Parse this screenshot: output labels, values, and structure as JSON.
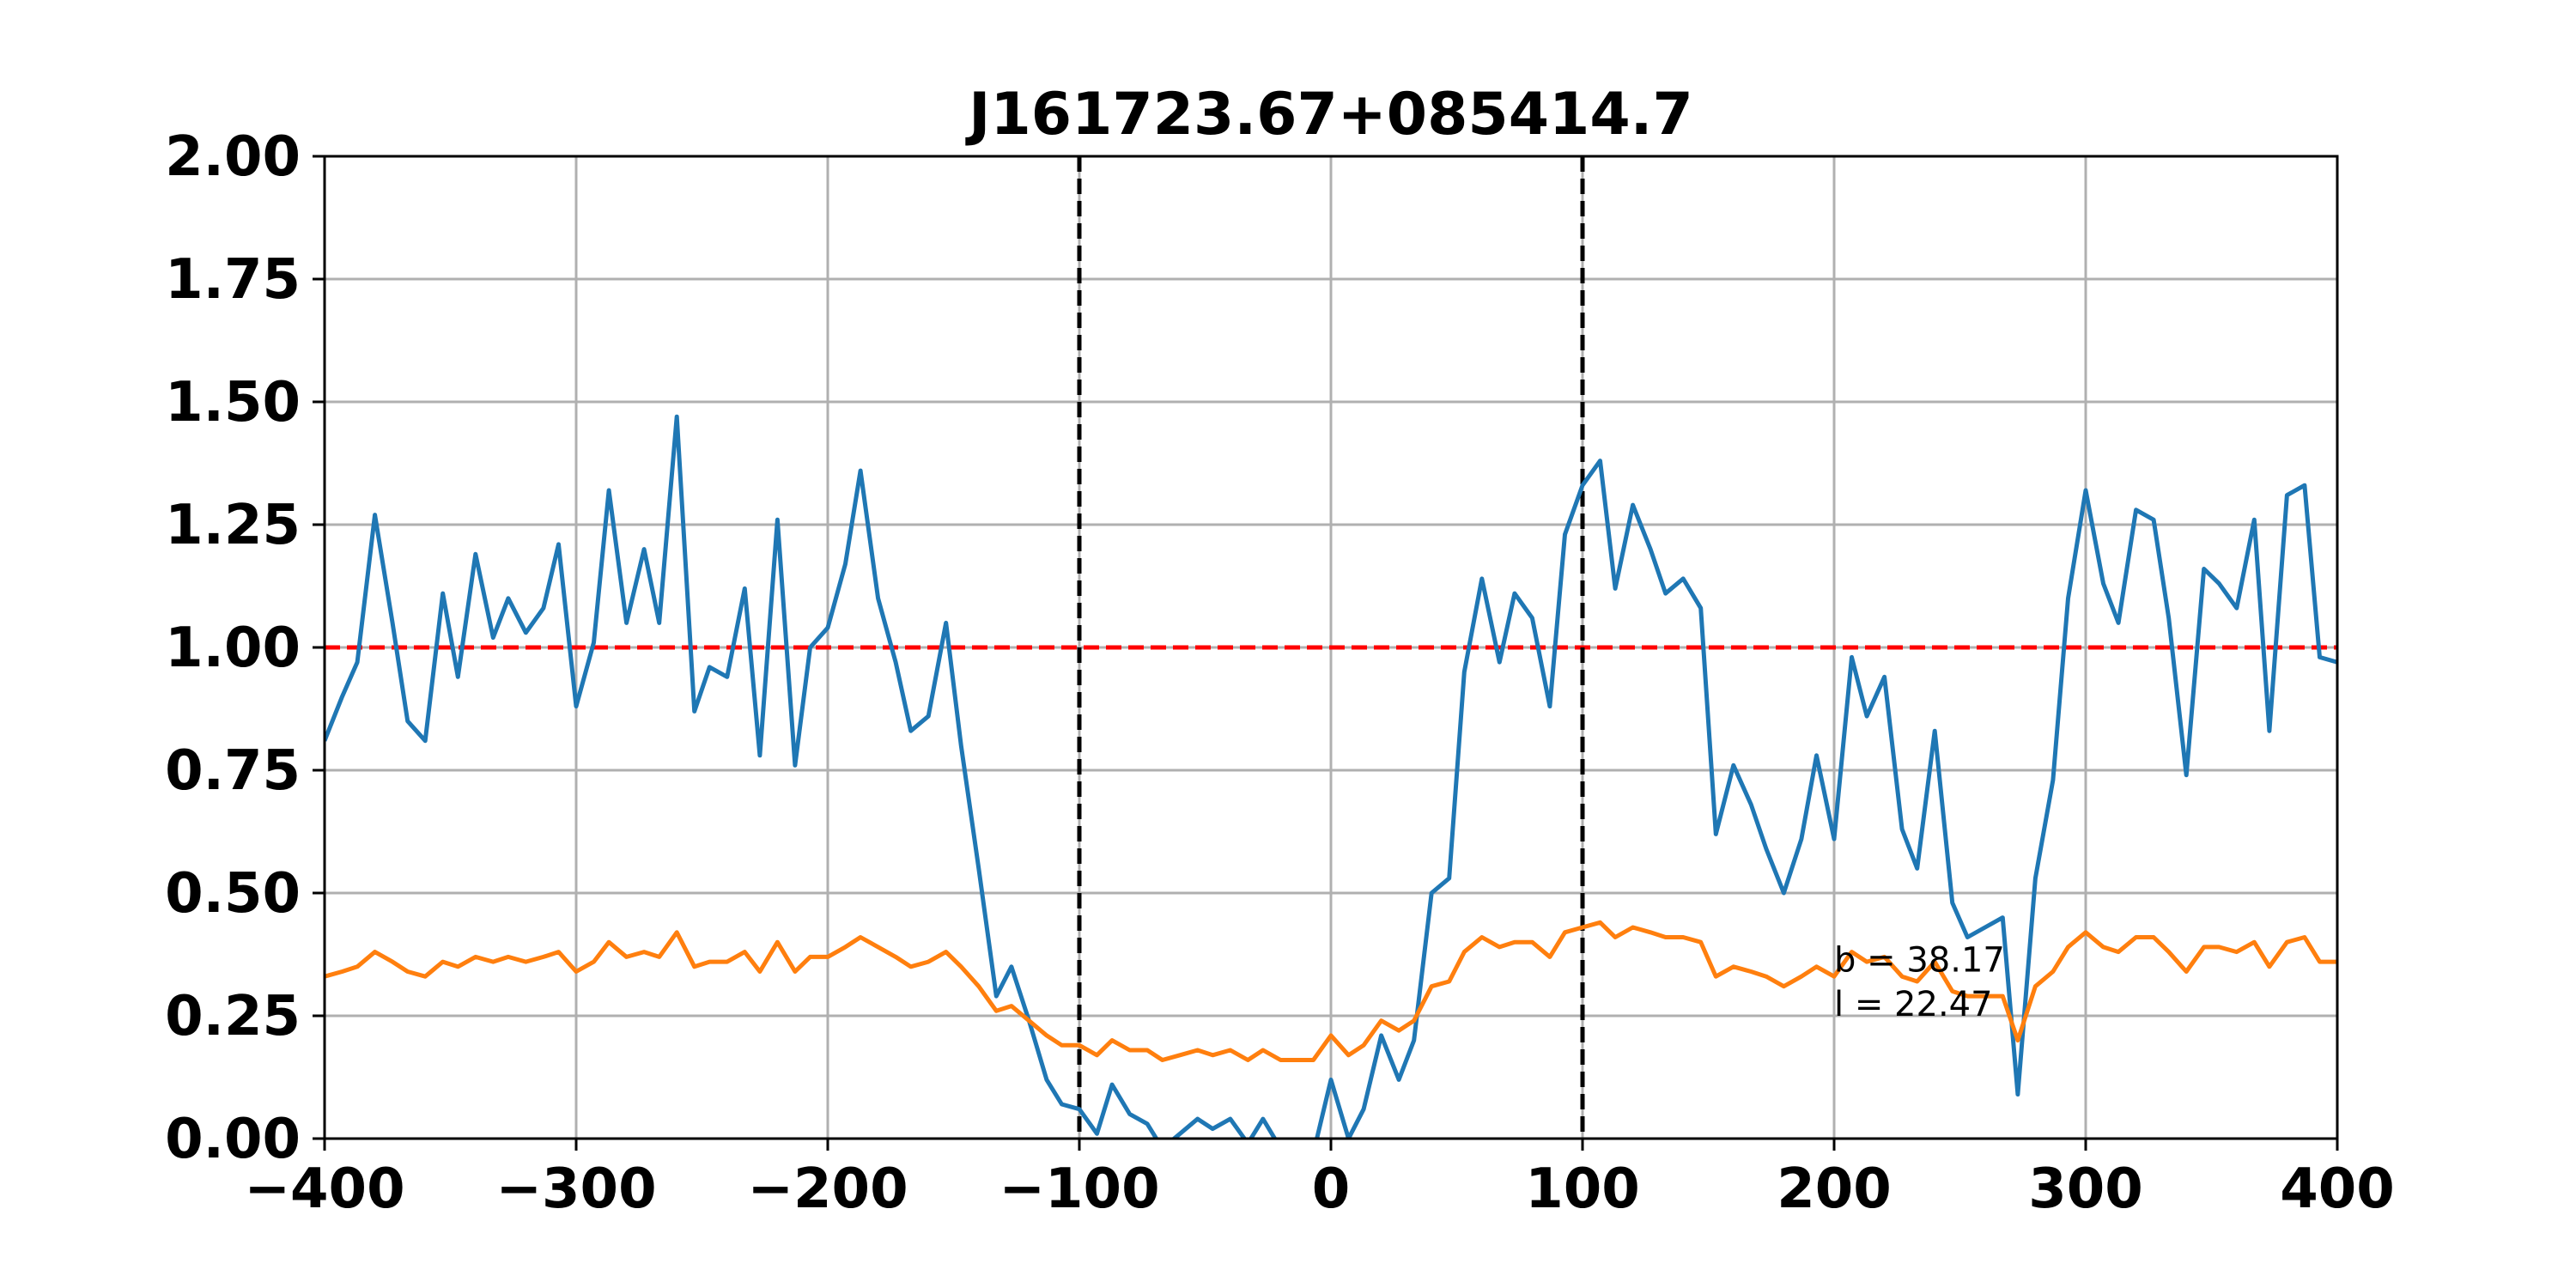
{
  "chart_data": {
    "type": "line",
    "title": "J161723.67+085414.7",
    "xlabel": "",
    "ylabel": "",
    "xlim": [
      -400,
      400
    ],
    "ylim": [
      0,
      2
    ],
    "grid": true,
    "xticks": [
      -400,
      -300,
      -200,
      -100,
      0,
      100,
      200,
      300,
      400
    ],
    "xtick_labels": [
      "−400",
      "−300",
      "−200",
      "−100",
      "0",
      "100",
      "200",
      "300",
      "400"
    ],
    "yticks": [
      0,
      0.25,
      0.5,
      0.75,
      1.0,
      1.25,
      1.5,
      1.75,
      2.0
    ],
    "ytick_labels": [
      "0.00",
      "0.25",
      "0.50",
      "0.75",
      "1.00",
      "1.25",
      "1.50",
      "1.75",
      "2.00"
    ],
    "reference_lines": [
      {
        "orientation": "horizontal",
        "value": 1.0,
        "color": "#ff0000",
        "style": "dashed"
      },
      {
        "orientation": "vertical",
        "value": -100,
        "color": "#000000",
        "style": "dashed"
      },
      {
        "orientation": "vertical",
        "value": 100,
        "color": "#000000",
        "style": "dashed"
      }
    ],
    "annotations": [
      {
        "text": "b = 38.17",
        "x": 200,
        "y": 0.34
      },
      {
        "text": "l = 22.47",
        "x": 200,
        "y": 0.25
      }
    ],
    "series": [
      {
        "color": "#1f77b4",
        "x": [
          -400,
          -393,
          -387,
          -380,
          -373,
          -367,
          -360,
          -353,
          -347,
          -340,
          -333,
          -327,
          -320,
          -313,
          -307,
          -300,
          -293,
          -287,
          -280,
          -273,
          -267,
          -260,
          -253,
          -247,
          -240,
          -233,
          -227,
          -220,
          -213,
          -207,
          -200,
          -193,
          -187,
          -180,
          -173,
          -167,
          -160,
          -153,
          -147,
          -140,
          -133,
          -127,
          -120,
          -113,
          -107,
          -100,
          -93,
          -87,
          -80,
          -73,
          -67,
          -60,
          -53,
          -47,
          -40,
          -33,
          -27,
          -20,
          -13,
          -7,
          0,
          7,
          13,
          20,
          27,
          33,
          40,
          47,
          53,
          60,
          67,
          73,
          80,
          87,
          93,
          100,
          107,
          113,
          120,
          127,
          133,
          140,
          147,
          153,
          160,
          167,
          173,
          180,
          187,
          193,
          200,
          207,
          213,
          220,
          227,
          233,
          240,
          247,
          253,
          260,
          267,
          273,
          280,
          287,
          293,
          300,
          307,
          313,
          320,
          327,
          333,
          340,
          347,
          353,
          360,
          367,
          373,
          380,
          387,
          393,
          400
        ],
        "y": [
          0.81,
          0.9,
          0.97,
          1.27,
          1.05,
          0.85,
          0.81,
          1.11,
          0.94,
          1.19,
          1.02,
          1.1,
          1.03,
          1.08,
          1.21,
          0.88,
          1.01,
          1.32,
          1.05,
          1.2,
          1.05,
          1.47,
          0.87,
          0.96,
          0.94,
          1.12,
          0.78,
          1.26,
          0.76,
          1.0,
          1.04,
          1.17,
          1.36,
          1.1,
          0.97,
          0.83,
          0.86,
          1.05,
          0.8,
          0.55,
          0.29,
          0.35,
          0.24,
          0.12,
          0.07,
          0.06,
          0.01,
          0.11,
          0.05,
          0.03,
          -0.02,
          0.01,
          0.04,
          0.02,
          0.04,
          -0.01,
          0.04,
          -0.02,
          -0.03,
          -0.03,
          0.12,
          0.0,
          0.06,
          0.21,
          0.12,
          0.2,
          0.5,
          0.53,
          0.95,
          1.14,
          0.97,
          1.11,
          1.06,
          0.88,
          1.23,
          1.33,
          1.38,
          1.12,
          1.29,
          1.2,
          1.11,
          1.14,
          1.08,
          0.62,
          0.76,
          0.68,
          0.59,
          0.5,
          0.61,
          0.78,
          0.61,
          0.98,
          0.86,
          0.94,
          0.63,
          0.55,
          0.83,
          0.48,
          0.41,
          0.43,
          0.45,
          0.09,
          0.53,
          0.73,
          1.1,
          1.32,
          1.13,
          1.05,
          1.28,
          1.26,
          1.06,
          0.74,
          1.16,
          1.13,
          1.08,
          1.26,
          0.83,
          1.31,
          1.33,
          0.98,
          0.97
        ]
      },
      {
        "color": "#ff7f0e",
        "x": [
          -400,
          -393,
          -387,
          -380,
          -373,
          -367,
          -360,
          -353,
          -347,
          -340,
          -333,
          -327,
          -320,
          -313,
          -307,
          -300,
          -293,
          -287,
          -280,
          -273,
          -267,
          -260,
          -253,
          -247,
          -240,
          -233,
          -227,
          -220,
          -213,
          -207,
          -200,
          -193,
          -187,
          -180,
          -173,
          -167,
          -160,
          -153,
          -147,
          -140,
          -133,
          -127,
          -120,
          -113,
          -107,
          -100,
          -93,
          -87,
          -80,
          -73,
          -67,
          -60,
          -53,
          -47,
          -40,
          -33,
          -27,
          -20,
          -13,
          -7,
          0,
          7,
          13,
          20,
          27,
          33,
          40,
          47,
          53,
          60,
          67,
          73,
          80,
          87,
          93,
          100,
          107,
          113,
          120,
          127,
          133,
          140,
          147,
          153,
          160,
          167,
          173,
          180,
          187,
          193,
          200,
          207,
          213,
          220,
          227,
          233,
          240,
          247,
          253,
          260,
          267,
          273,
          280,
          287,
          293,
          300,
          307,
          313,
          320,
          327,
          333,
          340,
          347,
          353,
          360,
          367,
          373,
          380,
          387,
          393,
          400
        ],
        "y": [
          0.33,
          0.34,
          0.35,
          0.38,
          0.36,
          0.34,
          0.33,
          0.36,
          0.35,
          0.37,
          0.36,
          0.37,
          0.36,
          0.37,
          0.38,
          0.34,
          0.36,
          0.4,
          0.37,
          0.38,
          0.37,
          0.42,
          0.35,
          0.36,
          0.36,
          0.38,
          0.34,
          0.4,
          0.34,
          0.37,
          0.37,
          0.39,
          0.41,
          0.39,
          0.37,
          0.35,
          0.36,
          0.38,
          0.35,
          0.31,
          0.26,
          0.27,
          0.24,
          0.21,
          0.19,
          0.19,
          0.17,
          0.2,
          0.18,
          0.18,
          0.16,
          0.17,
          0.18,
          0.17,
          0.18,
          0.16,
          0.18,
          0.16,
          0.16,
          0.16,
          0.21,
          0.17,
          0.19,
          0.24,
          0.22,
          0.24,
          0.31,
          0.32,
          0.38,
          0.41,
          0.39,
          0.4,
          0.4,
          0.37,
          0.42,
          0.43,
          0.44,
          0.41,
          0.43,
          0.42,
          0.41,
          0.41,
          0.4,
          0.33,
          0.35,
          0.34,
          0.33,
          0.31,
          0.33,
          0.35,
          0.33,
          0.38,
          0.36,
          0.37,
          0.33,
          0.32,
          0.36,
          0.3,
          0.29,
          0.29,
          0.29,
          0.2,
          0.31,
          0.34,
          0.39,
          0.42,
          0.39,
          0.38,
          0.41,
          0.41,
          0.38,
          0.34,
          0.39,
          0.39,
          0.38,
          0.4,
          0.35,
          0.4,
          0.41,
          0.36,
          0.36
        ]
      }
    ]
  }
}
